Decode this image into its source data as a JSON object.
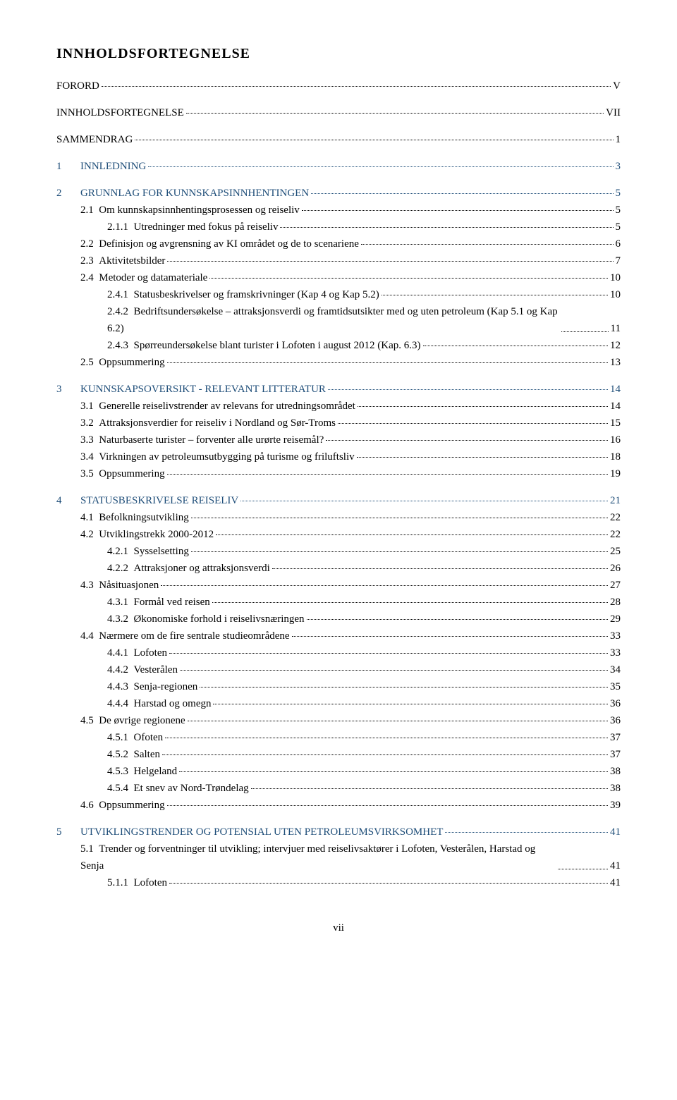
{
  "title": "INNHOLDSFORTEGNELSE",
  "footer_page": "vii",
  "colors": {
    "text": "#000000",
    "chapter": "#1f4e79",
    "background": "#ffffff"
  },
  "fontsize": {
    "title": 20,
    "body": 15
  },
  "entries": [
    {
      "level": "top",
      "label": "FORORD",
      "page": "V"
    },
    {
      "level": "top",
      "label": "INNHOLDSFORTEGNELSE",
      "page": "VII"
    },
    {
      "level": "top",
      "label": "SAMMENDRAG",
      "page": "1"
    },
    {
      "level": "chap",
      "num": "1",
      "label": "INNLEDNING",
      "page": "3"
    },
    {
      "level": "chap",
      "num": "2",
      "label": "GRUNNLAG FOR KUNNSKAPSINNHENTINGEN",
      "page": "5"
    },
    {
      "level": "sec",
      "num": "2.1",
      "label": "Om kunnskapsinnhentingsprosessen og reiseliv",
      "page": "5"
    },
    {
      "level": "sub",
      "num": "2.1.1",
      "label": "Utredninger med fokus på reiseliv",
      "page": "5"
    },
    {
      "level": "sec",
      "num": "2.2",
      "label": "Definisjon og avgrensning av KI området og de to scenariene",
      "page": "6"
    },
    {
      "level": "sec",
      "num": "2.3",
      "label": "Aktivitetsbilder",
      "page": "7"
    },
    {
      "level": "sec",
      "num": "2.4",
      "label": "Metoder og datamateriale",
      "page": "10"
    },
    {
      "level": "sub",
      "num": "2.4.1",
      "label": "Statusbeskrivelser og framskrivninger (Kap 4 og Kap 5.2)",
      "page": "10"
    },
    {
      "level": "sub",
      "num": "2.4.2",
      "label": "Bedriftsundersøkelse – attraksjonsverdi og framtidsutsikter med og uten petroleum (Kap 5.1 og Kap 6.2)",
      "page": "11",
      "wrap": true
    },
    {
      "level": "sub",
      "num": "2.4.3",
      "label": "Spørreundersøkelse blant turister i Lofoten i august 2012 (Kap. 6.3)",
      "page": "12"
    },
    {
      "level": "sec",
      "num": "2.5",
      "label": "Oppsummering",
      "page": "13"
    },
    {
      "level": "chap",
      "num": "3",
      "label": "KUNNSKAPSOVERSIKT - RELEVANT LITTERATUR",
      "page": "14"
    },
    {
      "level": "sec",
      "num": "3.1",
      "label": "Generelle reiselivstrender av relevans for utredningsområdet",
      "page": "14"
    },
    {
      "level": "sec",
      "num": "3.2",
      "label": "Attraksjonsverdier for reiseliv i Nordland og Sør-Troms",
      "page": "15"
    },
    {
      "level": "sec",
      "num": "3.3",
      "label": "Naturbaserte turister – forventer alle urørte reisemål?",
      "page": "16"
    },
    {
      "level": "sec",
      "num": "3.4",
      "label": "Virkningen av petroleumsutbygging på turisme og friluftsliv",
      "page": "18"
    },
    {
      "level": "sec",
      "num": "3.5",
      "label": "Oppsummering",
      "page": "19"
    },
    {
      "level": "chap",
      "num": "4",
      "label": "STATUSBESKRIVELSE REISELIV",
      "page": "21"
    },
    {
      "level": "sec",
      "num": "4.1",
      "label": "Befolkningsutvikling",
      "page": "22"
    },
    {
      "level": "sec",
      "num": "4.2",
      "label": "Utviklingstrekk 2000-2012",
      "page": "22"
    },
    {
      "level": "sub",
      "num": "4.2.1",
      "label": "Sysselsetting",
      "page": "25"
    },
    {
      "level": "sub",
      "num": "4.2.2",
      "label": "Attraksjoner og attraksjonsverdi",
      "page": "26"
    },
    {
      "level": "sec",
      "num": "4.3",
      "label": "Nåsituasjonen",
      "page": "27"
    },
    {
      "level": "sub",
      "num": "4.3.1",
      "label": "Formål ved reisen",
      "page": "28"
    },
    {
      "level": "sub",
      "num": "4.3.2",
      "label": "Økonomiske forhold i reiselivsnæringen",
      "page": "29"
    },
    {
      "level": "sec",
      "num": "4.4",
      "label": "Nærmere om de fire sentrale studieområdene",
      "page": "33"
    },
    {
      "level": "sub",
      "num": "4.4.1",
      "label": "Lofoten",
      "page": "33"
    },
    {
      "level": "sub",
      "num": "4.4.2",
      "label": "Vesterålen",
      "page": "34"
    },
    {
      "level": "sub",
      "num": "4.4.3",
      "label": "Senja-regionen",
      "page": "35"
    },
    {
      "level": "sub",
      "num": "4.4.4",
      "label": "Harstad og omegn",
      "page": "36"
    },
    {
      "level": "sec",
      "num": "4.5",
      "label": "De øvrige regionene",
      "page": "36"
    },
    {
      "level": "sub",
      "num": "4.5.1",
      "label": "Ofoten",
      "page": "37"
    },
    {
      "level": "sub",
      "num": "4.5.2",
      "label": "Salten",
      "page": "37"
    },
    {
      "level": "sub",
      "num": "4.5.3",
      "label": "Helgeland",
      "page": "38"
    },
    {
      "level": "sub",
      "num": "4.5.4",
      "label": "Et snev av Nord-Trøndelag",
      "page": "38"
    },
    {
      "level": "sec",
      "num": "4.6",
      "label": "Oppsummering",
      "page": "39"
    },
    {
      "level": "chap",
      "num": "5",
      "label": "UTVIKLINGSTRENDER OG POTENSIAL UTEN PETROLEUMSVIRKSOMHET",
      "page": "41"
    },
    {
      "level": "sec",
      "num": "5.1",
      "label": "Trender og forventninger til utvikling; intervjuer med reiselivsaktører i Lofoten, Vesterålen, Harstad og Senja",
      "page": "41",
      "wrap": true
    },
    {
      "level": "sub",
      "num": "5.1.1",
      "label": "Lofoten",
      "page": "41"
    }
  ]
}
